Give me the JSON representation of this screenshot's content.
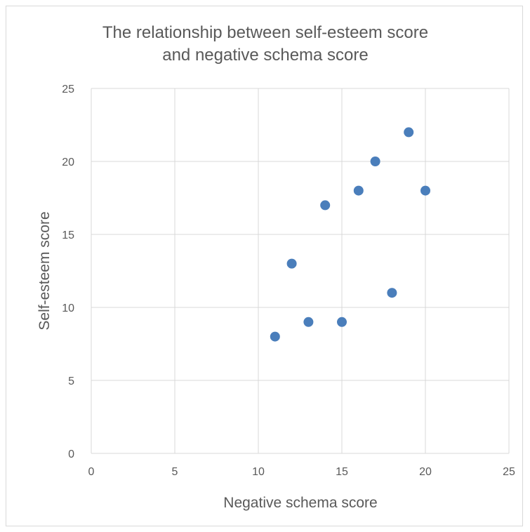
{
  "chart_data": {
    "type": "scatter",
    "title": "The relationship between self-esteem score and negative schema score",
    "title_lines": [
      "The relationship between self-esteem score",
      "and negative schema score"
    ],
    "xlabel": "Negative schema score",
    "ylabel": "Self-esteem score",
    "xlim": [
      0,
      25
    ],
    "ylim": [
      0,
      25
    ],
    "xticks": [
      "0",
      "5",
      "10",
      "15",
      "20",
      "25"
    ],
    "yticks": [
      "0",
      "5",
      "10",
      "15",
      "20",
      "25"
    ],
    "grid": true,
    "legend": "none",
    "marker_color": "#4a7ebb",
    "points": [
      {
        "x": 11,
        "y": 8
      },
      {
        "x": 12,
        "y": 13
      },
      {
        "x": 13,
        "y": 9
      },
      {
        "x": 14,
        "y": 17
      },
      {
        "x": 15,
        "y": 9
      },
      {
        "x": 16,
        "y": 18
      },
      {
        "x": 17,
        "y": 20
      },
      {
        "x": 18,
        "y": 11
      },
      {
        "x": 19,
        "y": 22
      },
      {
        "x": 20,
        "y": 18
      }
    ]
  }
}
